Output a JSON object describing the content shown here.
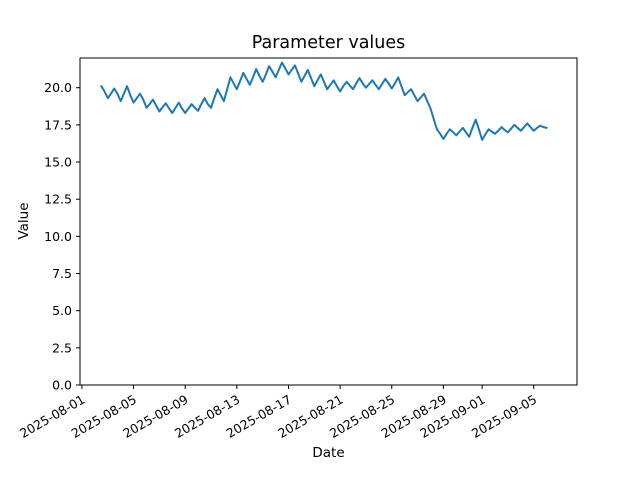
{
  "figure": {
    "background": "#ffffff",
    "frame_color": "#000000"
  },
  "chart_data": {
    "type": "line",
    "title": "Parameter values",
    "xlabel": "Date",
    "ylabel": "Value",
    "line_color": "#1f77b4",
    "legend": null,
    "grid": false,
    "x_unit": "days since 2025-08-01",
    "xlim": [
      -0.15,
      38.35
    ],
    "ylim": [
      0,
      22
    ],
    "yticks": [
      0.0,
      2.5,
      5.0,
      7.5,
      10.0,
      12.5,
      15.0,
      17.5,
      20.0
    ],
    "ytick_labels": [
      "0.0",
      "2.5",
      "5.0",
      "7.5",
      "10.0",
      "12.5",
      "15.0",
      "17.5",
      "20.0"
    ],
    "xticks": [
      {
        "pos": 0,
        "label": "2025-08-01"
      },
      {
        "pos": 4,
        "label": "2025-08-05"
      },
      {
        "pos": 8,
        "label": "2025-08-09"
      },
      {
        "pos": 12,
        "label": "2025-08-13"
      },
      {
        "pos": 16,
        "label": "2025-08-17"
      },
      {
        "pos": 20,
        "label": "2025-08-21"
      },
      {
        "pos": 24,
        "label": "2025-08-25"
      },
      {
        "pos": 28,
        "label": "2025-08-29"
      },
      {
        "pos": 31,
        "label": "2025-09-01"
      },
      {
        "pos": 35,
        "label": "2025-09-05"
      }
    ],
    "x_start": 1.5,
    "x_step": 0.25,
    "values": [
      20.1,
      19.75,
      19.3,
      19.6,
      19.95,
      19.6,
      19.1,
      19.6,
      20.1,
      19.5,
      19.0,
      19.3,
      19.6,
      19.2,
      18.65,
      18.9,
      19.2,
      18.8,
      18.4,
      18.7,
      18.95,
      18.6,
      18.3,
      18.65,
      19.0,
      18.6,
      18.3,
      18.6,
      18.9,
      18.65,
      18.45,
      18.9,
      19.3,
      18.9,
      18.65,
      19.3,
      19.9,
      19.5,
      19.1,
      19.9,
      20.7,
      20.3,
      19.9,
      20.45,
      21.0,
      20.6,
      20.2,
      20.7,
      21.25,
      20.8,
      20.4,
      20.9,
      21.45,
      21.1,
      20.7,
      21.2,
      21.7,
      21.3,
      20.9,
      21.2,
      21.5,
      20.95,
      20.4,
      20.8,
      21.2,
      20.65,
      20.1,
      20.5,
      20.9,
      20.4,
      19.9,
      20.2,
      20.5,
      20.1,
      19.75,
      20.1,
      20.4,
      20.15,
      19.9,
      20.3,
      20.65,
      20.3,
      20.0,
      20.25,
      20.5,
      20.2,
      19.9,
      20.25,
      20.6,
      20.3,
      19.95,
      20.3,
      20.7,
      20.1,
      19.5,
      19.7,
      19.9,
      19.5,
      19.1,
      19.35,
      19.6,
      19.1,
      18.6,
      17.9,
      17.2,
      16.9,
      16.55,
      16.9,
      17.2,
      17.0,
      16.8,
      17.05,
      17.3,
      17.0,
      16.7,
      17.3,
      17.85,
      17.2,
      16.5,
      16.85,
      17.2,
      17.05,
      16.9,
      17.1,
      17.35,
      17.15,
      17.0,
      17.25,
      17.5,
      17.3,
      17.1,
      17.35,
      17.6,
      17.35,
      17.1,
      17.3,
      17.45,
      17.35,
      17.3
    ]
  }
}
